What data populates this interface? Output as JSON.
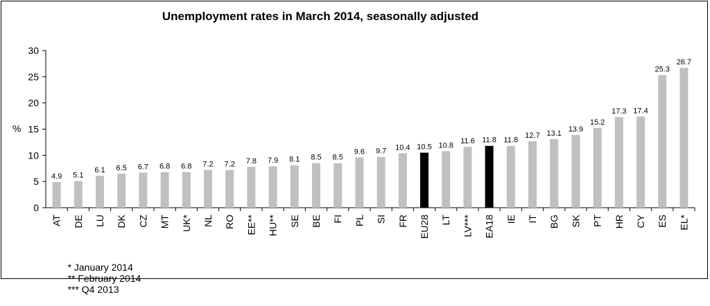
{
  "chart_data": {
    "type": "bar",
    "title": "Unemployment rates in March 2014, seasonally adjusted",
    "ylabel": "%",
    "ylim": [
      0,
      30
    ],
    "yticks": [
      0,
      5,
      10,
      15,
      20,
      25,
      30
    ],
    "grid": false,
    "categories": [
      "AT",
      "DE",
      "LU",
      "DK",
      "CZ",
      "MT",
      "UK*",
      "NL",
      "RO",
      "EE**",
      "HU**",
      "SE",
      "BE",
      "FI",
      "PL",
      "SI",
      "FR",
      "EU28",
      "LT",
      "LV***",
      "EA18",
      "IE",
      "IT",
      "BG",
      "SK",
      "PT",
      "HR",
      "CY",
      "ES",
      "EL*"
    ],
    "values": [
      4.9,
      5.1,
      6.1,
      6.5,
      6.7,
      6.8,
      6.8,
      7.2,
      7.2,
      7.8,
      7.9,
      8.1,
      8.5,
      8.5,
      9.6,
      9.7,
      10.4,
      10.5,
      10.8,
      11.6,
      11.8,
      11.8,
      12.7,
      13.1,
      13.9,
      15.2,
      17.3,
      17.4,
      25.3,
      26.7
    ],
    "data_labels": [
      "4.9",
      "5.1",
      "6.1",
      "6.5",
      "6.7",
      "6.8",
      "6.8",
      "7.2",
      "7.2",
      "7.8",
      "7.9",
      "8.1",
      "8.5",
      "8.5",
      "9.6",
      "9.7",
      "10.4",
      "10.5",
      "10.8",
      "11.6",
      "11.8",
      "11.8",
      "12.7",
      "13.1",
      "13.9",
      "15.2",
      "17.3",
      "17.4",
      "25.3",
      "26.7"
    ],
    "highlighted": [
      "EU28",
      "EA18"
    ],
    "colors": {
      "bar": "#c0c0c0",
      "highlight": "#000000"
    }
  },
  "footnotes": [
    "* January 2014",
    "** February 2014",
    "*** Q4 2013"
  ]
}
